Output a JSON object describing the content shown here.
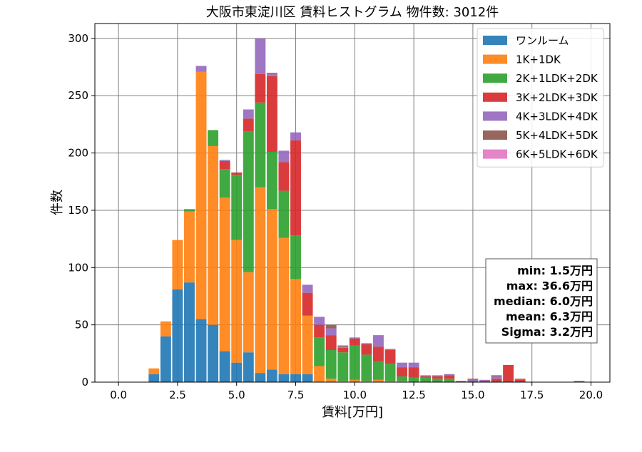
{
  "chart_data": {
    "type": "bar",
    "stacked": true,
    "title": "大阪市東淀川区 賃料ヒストグラム 物件数: 3012件",
    "xlabel": "賃料[万円]",
    "ylabel": "件数",
    "xlim": [
      -1.0,
      20.8
    ],
    "ylim": [
      0,
      313
    ],
    "xticks": [
      0.0,
      2.5,
      5.0,
      7.5,
      10.0,
      12.5,
      15.0,
      17.5,
      20.0
    ],
    "xtick_labels": [
      "0.0",
      "2.5",
      "5.0",
      "7.5",
      "10.0",
      "12.5",
      "15.0",
      "17.5",
      "20.0"
    ],
    "yticks": [
      0,
      50,
      100,
      150,
      200,
      250,
      300
    ],
    "ytick_labels": [
      "0",
      "50",
      "100",
      "150",
      "200",
      "250",
      "300"
    ],
    "grid": true,
    "legend_position": "top-right",
    "bin_width": 0.5,
    "x": [
      1.5,
      2.0,
      2.5,
      3.0,
      3.5,
      4.0,
      4.5,
      5.0,
      5.5,
      6.0,
      6.5,
      7.0,
      7.5,
      8.0,
      8.5,
      9.0,
      9.5,
      10.0,
      10.5,
      11.0,
      11.5,
      12.0,
      12.5,
      13.0,
      13.5,
      14.0,
      14.5,
      15.0,
      15.5,
      16.0,
      16.5,
      17.0,
      17.5,
      18.0,
      18.5,
      19.0,
      19.5
    ],
    "series": [
      {
        "name": "ワンルーム",
        "color": "#1f77b4",
        "values": [
          7,
          40,
          81,
          87,
          55,
          50,
          27,
          17,
          26,
          8,
          11,
          7,
          7,
          7,
          0,
          0,
          0,
          0,
          0,
          0,
          0,
          0,
          0,
          0,
          0,
          0,
          0,
          0,
          0,
          0,
          0,
          0,
          0,
          0,
          0,
          0,
          1
        ]
      },
      {
        "name": "1K+1DK",
        "color": "#ff7f0e",
        "values": [
          5,
          13,
          43,
          62,
          216,
          156,
          134,
          107,
          70,
          162,
          140,
          119,
          83,
          51,
          14,
          3,
          1,
          2,
          1,
          2,
          1,
          1,
          0,
          0,
          0,
          0,
          0,
          0,
          0,
          0,
          0,
          0,
          0,
          0,
          0,
          0,
          0
        ]
      },
      {
        "name": "2K+1LDK+2DK",
        "color": "#2ca02c",
        "values": [
          0,
          0,
          0,
          2,
          0,
          14,
          25,
          57,
          123,
          74,
          50,
          41,
          38,
          0,
          25,
          25,
          25,
          30,
          23,
          16,
          15,
          4,
          4,
          4,
          3,
          3,
          0,
          0,
          0,
          0,
          0,
          0,
          0,
          0,
          0,
          0,
          0
        ]
      },
      {
        "name": "3K+2LDK+3DK",
        "color": "#d62728",
        "values": [
          0,
          0,
          0,
          0,
          0,
          0,
          7,
          2,
          11,
          25,
          66,
          25,
          83,
          20,
          11,
          13,
          4,
          6,
          9,
          13,
          12,
          8,
          9,
          1,
          2,
          3,
          1,
          1,
          1,
          3,
          15,
          2,
          0,
          0,
          0,
          0,
          0
        ]
      },
      {
        "name": "4K+3LDK+4DK",
        "color": "#9467bd",
        "values": [
          0,
          0,
          0,
          0,
          5,
          0,
          1,
          0,
          8,
          31,
          2,
          10,
          7,
          7,
          7,
          6,
          1,
          1,
          1,
          10,
          1,
          4,
          4,
          1,
          1,
          1,
          0,
          1,
          1,
          2,
          0,
          0,
          0,
          0,
          0,
          0,
          0
        ]
      },
      {
        "name": "5K+4LDK+5DK",
        "color": "#8c564b",
        "values": [
          0,
          0,
          0,
          0,
          0,
          0,
          0,
          0,
          0,
          0,
          1,
          0,
          0,
          0,
          0,
          3,
          1,
          0,
          0,
          0,
          0,
          0,
          0,
          0,
          0,
          0,
          0,
          1,
          0,
          1,
          0,
          1,
          0,
          0,
          0,
          0,
          0
        ]
      },
      {
        "name": "6K+5LDK+6DK",
        "color": "#e377c2",
        "values": [
          0,
          0,
          0,
          0,
          0,
          0,
          0,
          0,
          0,
          0,
          0,
          0,
          0,
          0,
          0,
          0,
          0,
          0,
          0,
          0,
          0,
          0,
          0,
          0,
          0,
          0,
          0,
          0,
          0,
          0,
          0,
          0,
          0,
          0,
          0,
          0,
          0
        ]
      }
    ],
    "stats_box": [
      "min: 1.5万円",
      "max: 36.6万円",
      "median: 6.0万円",
      "mean: 6.3万円",
      "Sigma: 3.2万円"
    ]
  }
}
